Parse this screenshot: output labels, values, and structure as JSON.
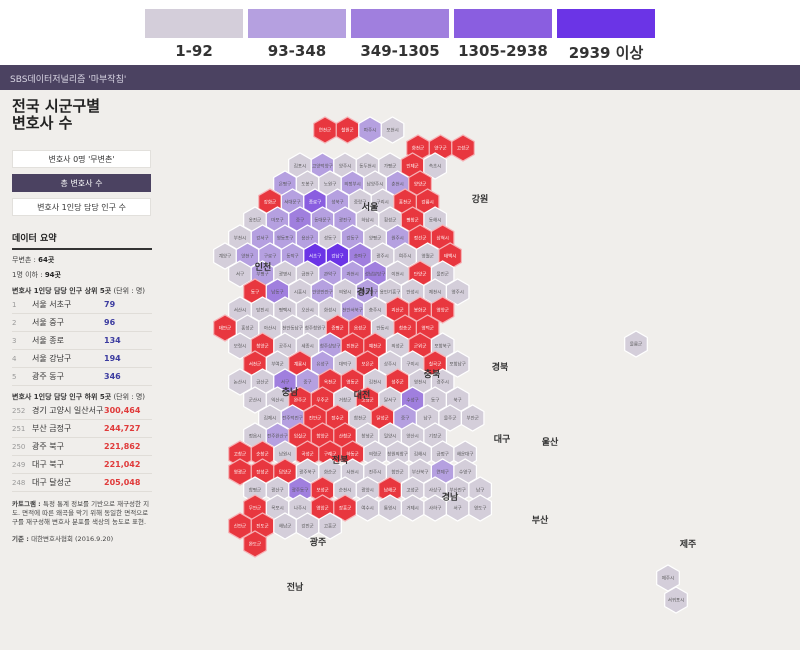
{
  "legend": {
    "items": [
      {
        "label": "1-92",
        "color": "#d4ceda"
      },
      {
        "label": "93-348",
        "color": "#b5a0e0"
      },
      {
        "label": "349-1305",
        "color": "#a07fde"
      },
      {
        "label": "1305-2938",
        "color": "#8a5ee0"
      },
      {
        "label": "2939 이상",
        "color": "#6b34e6"
      }
    ]
  },
  "header": {
    "brand": "SBS데이터저널리즘 '마부작침'"
  },
  "panel": {
    "title": "전국 시군구별\n변호사 수",
    "tabs": [
      {
        "label": "변호사 0명 '무변촌'",
        "active": false
      },
      {
        "label": "총 변호사 수",
        "active": true
      },
      {
        "label": "변호사 1인당 담당 인구 수",
        "active": false
      }
    ],
    "summary_title": "데이터 요약",
    "stats": [
      {
        "label": "무변촌 : ",
        "value": "64곳"
      },
      {
        "label": "1명 이하 : ",
        "value": "94곳"
      }
    ],
    "top_title": "변호사 1인당 담당 인구 상위 5곳",
    "top_unit": " (단위 : 명)",
    "top": [
      {
        "no": "1",
        "name": "서울 서초구",
        "value": "79"
      },
      {
        "no": "2",
        "name": "서울 중구",
        "value": "96"
      },
      {
        "no": "3",
        "name": "서울 종로",
        "value": "134"
      },
      {
        "no": "4",
        "name": "서울 강남구",
        "value": "194"
      },
      {
        "no": "5",
        "name": "광주 동구",
        "value": "346"
      }
    ],
    "bottom_title": "변호사 1인당 담당 인구 하위 5곳",
    "bottom_unit": " (단위 : 명)",
    "bottom": [
      {
        "no": "252",
        "name": "경기 고양시 일산서구",
        "value": "300,464"
      },
      {
        "no": "251",
        "name": "부산 금정구",
        "value": "244,727"
      },
      {
        "no": "250",
        "name": "광주 북구",
        "value": "221,862"
      },
      {
        "no": "249",
        "name": "대구 북구",
        "value": "221,042"
      },
      {
        "no": "248",
        "name": "대구 달성군",
        "value": "205,048"
      }
    ],
    "note_label": "카토그램 : ",
    "note": "특정 통계 정보를 기반으로 재구성한 지도. 면적에 따른 왜곡을 막기 위해 동일한 면적으로 구를 재구성해 변호사 분포를 색상의 농도로 표현.",
    "source_label": "기준 : ",
    "source": "대한변호사협회 (2016.9.20)"
  },
  "map": {
    "colors": {
      "zero": "#e8373f",
      "zero_border": "#f6b2b6",
      "c1": "#d4ceda",
      "c2": "#b5a0e0",
      "c3": "#a07fde",
      "c4": "#8a5ee0",
      "c5": "#6b34e6",
      "stroke": "#ffffff"
    },
    "regions": [
      "서울",
      "인천",
      "경기",
      "강원",
      "충북",
      "충남",
      "대전",
      "경북",
      "대구",
      "울산",
      "전북",
      "경남",
      "부산",
      "광주",
      "전남",
      "제주"
    ],
    "hexes": [
      {
        "n": "연천군",
        "c": "zero"
      },
      {
        "n": "철원군",
        "c": "zero"
      },
      {
        "n": "파주시",
        "c": "c2"
      },
      {
        "n": "포천시",
        "c": "c1"
      },
      {
        "n": "화천군",
        "c": "zero"
      },
      {
        "n": "양구군",
        "c": "zero"
      },
      {
        "n": "고성군",
        "c": "zero"
      },
      {
        "n": "김포시",
        "c": "c1"
      },
      {
        "n": "고양덕양구",
        "c": "c2"
      },
      {
        "n": "양주시",
        "c": "c1"
      },
      {
        "n": "동두천시",
        "c": "c1"
      },
      {
        "n": "가평군",
        "c": "c1"
      },
      {
        "n": "인제군",
        "c": "zero"
      },
      {
        "n": "속초시",
        "c": "c1"
      },
      {
        "n": "은평구",
        "c": "c2"
      },
      {
        "n": "도봉구",
        "c": "c1"
      },
      {
        "n": "노원구",
        "c": "c1"
      },
      {
        "n": "의정부시",
        "c": "c2"
      },
      {
        "n": "남양주시",
        "c": "c1"
      },
      {
        "n": "춘천시",
        "c": "c2"
      },
      {
        "n": "양양군",
        "c": "zero"
      },
      {
        "n": "강화군",
        "c": "zero"
      },
      {
        "n": "서대문구",
        "c": "c2"
      },
      {
        "n": "종로구",
        "c": "c4"
      },
      {
        "n": "성북구",
        "c": "c2"
      },
      {
        "n": "중랑구",
        "c": "c1"
      },
      {
        "n": "구리시",
        "c": "c1"
      },
      {
        "n": "홍천군",
        "c": "zero"
      },
      {
        "n": "강릉시",
        "c": "zero"
      },
      {
        "n": "옹진군",
        "c": "c1"
      },
      {
        "n": "마포구",
        "c": "c2"
      },
      {
        "n": "중구",
        "c": "c3"
      },
      {
        "n": "동대문구",
        "c": "c2"
      },
      {
        "n": "광진구",
        "c": "c2"
      },
      {
        "n": "하남시",
        "c": "c1"
      },
      {
        "n": "횡성군",
        "c": "c1"
      },
      {
        "n": "평창군",
        "c": "zero"
      },
      {
        "n": "동해시",
        "c": "c1"
      },
      {
        "n": "부천시",
        "c": "c1"
      },
      {
        "n": "강서구",
        "c": "c2"
      },
      {
        "n": "영등포구",
        "c": "c2"
      },
      {
        "n": "용산구",
        "c": "c2"
      },
      {
        "n": "성동구",
        "c": "c1"
      },
      {
        "n": "강동구",
        "c": "c2"
      },
      {
        "n": "양평군",
        "c": "c1"
      },
      {
        "n": "원주시",
        "c": "c2"
      },
      {
        "n": "정선군",
        "c": "zero"
      },
      {
        "n": "삼척시",
        "c": "zero"
      },
      {
        "n": "계양구",
        "c": "c1"
      },
      {
        "n": "양천구",
        "c": "c2"
      },
      {
        "n": "구로구",
        "c": "c2"
      },
      {
        "n": "동작구",
        "c": "c2"
      },
      {
        "n": "서초구",
        "c": "c5"
      },
      {
        "n": "강남구",
        "c": "c5"
      },
      {
        "n": "송파구",
        "c": "c3"
      },
      {
        "n": "광주시",
        "c": "c1"
      },
      {
        "n": "여주시",
        "c": "c1"
      },
      {
        "n": "영월군",
        "c": "c1"
      },
      {
        "n": "태백시",
        "c": "zero"
      },
      {
        "n": "서구",
        "c": "c1"
      },
      {
        "n": "부평구",
        "c": "c2"
      },
      {
        "n": "광명시",
        "c": "c1"
      },
      {
        "n": "금천구",
        "c": "c1"
      },
      {
        "n": "관악구",
        "c": "c2"
      },
      {
        "n": "과천시",
        "c": "c2"
      },
      {
        "n": "성남분당구",
        "c": "c3"
      },
      {
        "n": "이천시",
        "c": "c1"
      },
      {
        "n": "단양군",
        "c": "zero"
      },
      {
        "n": "울진군",
        "c": "c1"
      },
      {
        "n": "동구",
        "c": "zero"
      },
      {
        "n": "남동구",
        "c": "c3"
      },
      {
        "n": "시흥시",
        "c": "c1"
      },
      {
        "n": "안양만안구",
        "c": "c2"
      },
      {
        "n": "의왕시",
        "c": "c1"
      },
      {
        "n": "수원장안구",
        "c": "c2"
      },
      {
        "n": "용인기흥구",
        "c": "c1"
      },
      {
        "n": "안성시",
        "c": "c1"
      },
      {
        "n": "제천시",
        "c": "c1"
      },
      {
        "n": "영주시",
        "c": "c1"
      },
      {
        "n": "서산시",
        "c": "c1"
      },
      {
        "n": "당진시",
        "c": "c1"
      },
      {
        "n": "평택시",
        "c": "c1"
      },
      {
        "n": "오산시",
        "c": "c1"
      },
      {
        "n": "화성시",
        "c": "c1"
      },
      {
        "n": "천안서북구",
        "c": "c2"
      },
      {
        "n": "충주시",
        "c": "c1"
      },
      {
        "n": "괴산군",
        "c": "zero"
      },
      {
        "n": "봉화군",
        "c": "zero"
      },
      {
        "n": "영양군",
        "c": "zero"
      },
      {
        "n": "태안군",
        "c": "zero"
      },
      {
        "n": "홍성군",
        "c": "c1"
      },
      {
        "n": "아산시",
        "c": "c1"
      },
      {
        "n": "천안동남구",
        "c": "c1"
      },
      {
        "n": "청주청원구",
        "c": "c1"
      },
      {
        "n": "증평군",
        "c": "zero"
      },
      {
        "n": "음성군",
        "c": "zero"
      },
      {
        "n": "안동시",
        "c": "c1"
      },
      {
        "n": "청송군",
        "c": "zero"
      },
      {
        "n": "영덕군",
        "c": "zero"
      },
      {
        "n": "보령시",
        "c": "c1"
      },
      {
        "n": "청양군",
        "c": "zero"
      },
      {
        "n": "공주시",
        "c": "c1"
      },
      {
        "n": "세종시",
        "c": "c1"
      },
      {
        "n": "청주상당구",
        "c": "c2"
      },
      {
        "n": "진천군",
        "c": "zero"
      },
      {
        "n": "예천군",
        "c": "zero"
      },
      {
        "n": "의성군",
        "c": "c1"
      },
      {
        "n": "군위군",
        "c": "zero"
      },
      {
        "n": "포항북구",
        "c": "c1"
      },
      {
        "n": "서천군",
        "c": "zero"
      },
      {
        "n": "부여군",
        "c": "c1"
      },
      {
        "n": "계룡시",
        "c": "zero"
      },
      {
        "n": "유성구",
        "c": "c2"
      },
      {
        "n": "대덕구",
        "c": "c1"
      },
      {
        "n": "보은군",
        "c": "zero"
      },
      {
        "n": "상주시",
        "c": "c1"
      },
      {
        "n": "구미시",
        "c": "c1"
      },
      {
        "n": "칠곡군",
        "c": "zero"
      },
      {
        "n": "포항남구",
        "c": "c1"
      },
      {
        "n": "논산시",
        "c": "c1"
      },
      {
        "n": "금산군",
        "c": "c1"
      },
      {
        "n": "서구",
        "c": "c3"
      },
      {
        "n": "중구",
        "c": "c2"
      },
      {
        "n": "옥천군",
        "c": "zero"
      },
      {
        "n": "영동군",
        "c": "zero"
      },
      {
        "n": "김천시",
        "c": "c1"
      },
      {
        "n": "성주군",
        "c": "zero"
      },
      {
        "n": "영천시",
        "c": "c1"
      },
      {
        "n": "경주시",
        "c": "c1"
      },
      {
        "n": "군산시",
        "c": "c1"
      },
      {
        "n": "익산시",
        "c": "c1"
      },
      {
        "n": "완주군",
        "c": "zero"
      },
      {
        "n": "무주군",
        "c": "zero"
      },
      {
        "n": "거창군",
        "c": "c1"
      },
      {
        "n": "고령군",
        "c": "zero"
      },
      {
        "n": "달서구",
        "c": "c1"
      },
      {
        "n": "수성구",
        "c": "c3"
      },
      {
        "n": "동구",
        "c": "c1"
      },
      {
        "n": "북구",
        "c": "c1"
      },
      {
        "n": "김제시",
        "c": "c1"
      },
      {
        "n": "전주덕진구",
        "c": "c2"
      },
      {
        "n": "진안군",
        "c": "zero"
      },
      {
        "n": "장수군",
        "c": "zero"
      },
      {
        "n": "합천군",
        "c": "c1"
      },
      {
        "n": "달성군",
        "c": "zero"
      },
      {
        "n": "중구",
        "c": "c2"
      },
      {
        "n": "남구",
        "c": "c1"
      },
      {
        "n": "울주군",
        "c": "c1"
      },
      {
        "n": "부안군",
        "c": "c1"
      },
      {
        "n": "정읍시",
        "c": "c1"
      },
      {
        "n": "전주완산구",
        "c": "c2"
      },
      {
        "n": "임실군",
        "c": "zero"
      },
      {
        "n": "함양군",
        "c": "zero"
      },
      {
        "n": "산청군",
        "c": "zero"
      },
      {
        "n": "창녕군",
        "c": "c1"
      },
      {
        "n": "밀양시",
        "c": "c1"
      },
      {
        "n": "양산시",
        "c": "c1"
      },
      {
        "n": "기장군",
        "c": "c1"
      },
      {
        "n": "고창군",
        "c": "zero"
      },
      {
        "n": "순창군",
        "c": "zero"
      },
      {
        "n": "남원시",
        "c": "c1"
      },
      {
        "n": "곡성군",
        "c": "zero"
      },
      {
        "n": "구례군",
        "c": "zero"
      },
      {
        "n": "하동군",
        "c": "zero"
      },
      {
        "n": "의령군",
        "c": "c1"
      },
      {
        "n": "창원의창구",
        "c": "c1"
      },
      {
        "n": "김해시",
        "c": "c1"
      },
      {
        "n": "금정구",
        "c": "c1"
      },
      {
        "n": "해운대구",
        "c": "c1"
      },
      {
        "n": "영광군",
        "c": "zero"
      },
      {
        "n": "장성군",
        "c": "zero"
      },
      {
        "n": "담양군",
        "c": "zero"
      },
      {
        "n": "광주북구",
        "c": "c1"
      },
      {
        "n": "화순군",
        "c": "c1"
      },
      {
        "n": "사천시",
        "c": "c1"
      },
      {
        "n": "진주시",
        "c": "c1"
      },
      {
        "n": "함안군",
        "c": "c1"
      },
      {
        "n": "부산북구",
        "c": "c1"
      },
      {
        "n": "연제구",
        "c": "c2"
      },
      {
        "n": "수영구",
        "c": "c1"
      },
      {
        "n": "함평군",
        "c": "c1"
      },
      {
        "n": "광산구",
        "c": "c1"
      },
      {
        "n": "광주동구",
        "c": "c3"
      },
      {
        "n": "보성군",
        "c": "zero"
      },
      {
        "n": "순천시",
        "c": "c1"
      },
      {
        "n": "광양시",
        "c": "c1"
      },
      {
        "n": "남해군",
        "c": "zero"
      },
      {
        "n": "고성군",
        "c": "c1"
      },
      {
        "n": "사상구",
        "c": "c1"
      },
      {
        "n": "부산진구",
        "c": "c1"
      },
      {
        "n": "남구",
        "c": "c1"
      },
      {
        "n": "무안군",
        "c": "zero"
      },
      {
        "n": "목포시",
        "c": "c1"
      },
      {
        "n": "나주시",
        "c": "c1"
      },
      {
        "n": "영암군",
        "c": "zero"
      },
      {
        "n": "장흥군",
        "c": "zero"
      },
      {
        "n": "여수시",
        "c": "c1"
      },
      {
        "n": "통영시",
        "c": "c1"
      },
      {
        "n": "거제시",
        "c": "c1"
      },
      {
        "n": "사하구",
        "c": "c1"
      },
      {
        "n": "서구",
        "c": "c1"
      },
      {
        "n": "영도구",
        "c": "c1"
      },
      {
        "n": "신안군",
        "c": "zero"
      },
      {
        "n": "진도군",
        "c": "zero"
      },
      {
        "n": "해남군",
        "c": "c1"
      },
      {
        "n": "강진군",
        "c": "c1"
      },
      {
        "n": "고흥군",
        "c": "c1"
      },
      {
        "n": "제주시",
        "c": "c1"
      },
      {
        "n": "완도군",
        "c": "zero"
      },
      {
        "n": "서귀포시",
        "c": "c1"
      },
      {
        "n": "울릉군",
        "c": "c1"
      }
    ]
  }
}
